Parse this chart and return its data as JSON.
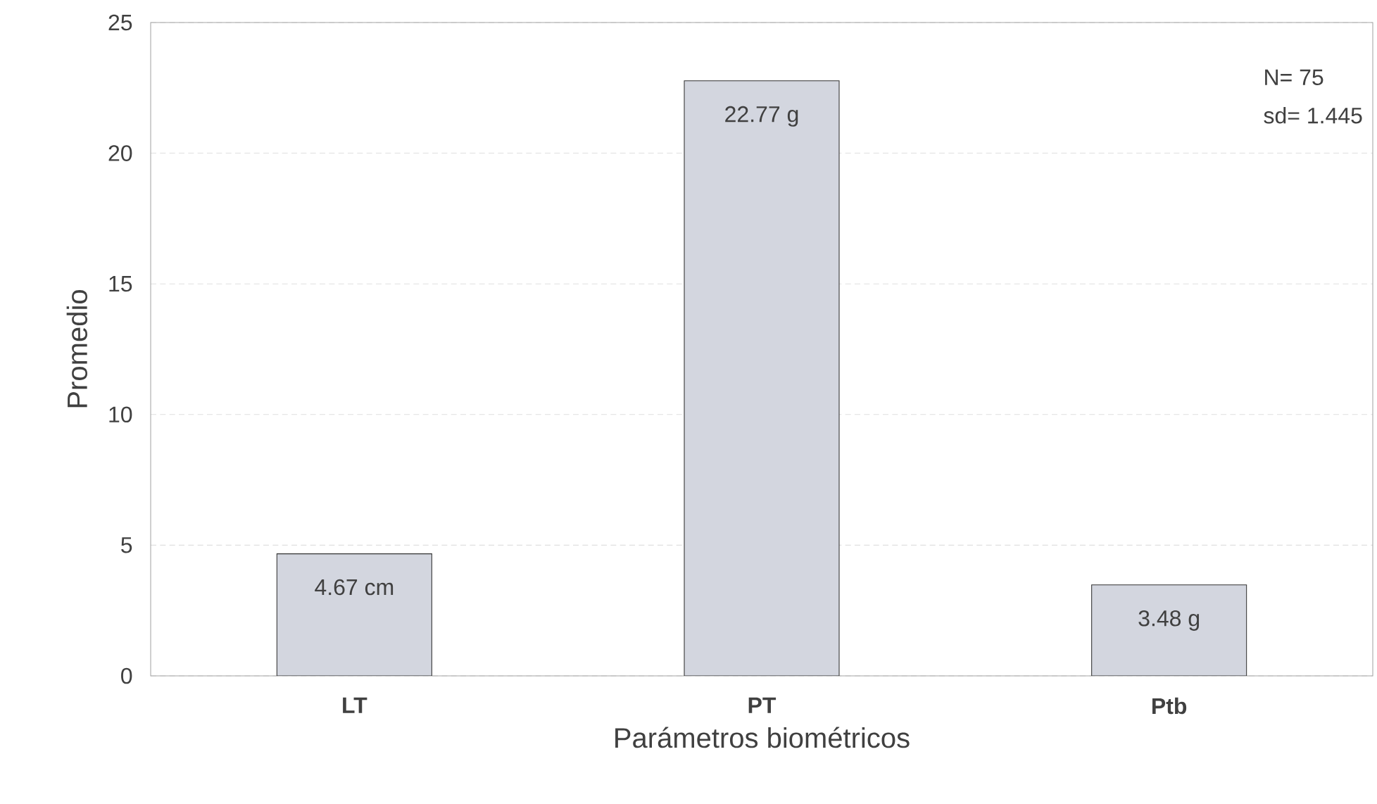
{
  "chart_data": {
    "type": "bar",
    "xlabel": "Parámetros biométricos",
    "ylabel": "Promedio",
    "categories": [
      "LT",
      "PT",
      "Ptb"
    ],
    "values": [
      4.67,
      22.77,
      3.48
    ],
    "value_labels": [
      "4.67 cm",
      "22.77 g",
      "3.48 g"
    ],
    "color": "#d3d6df",
    "ylim": [
      0,
      25
    ],
    "yticks": [
      0,
      5,
      10,
      15,
      20,
      25
    ],
    "grid": "y",
    "annotations": [
      "N= 75",
      "sd= 1.445"
    ]
  }
}
